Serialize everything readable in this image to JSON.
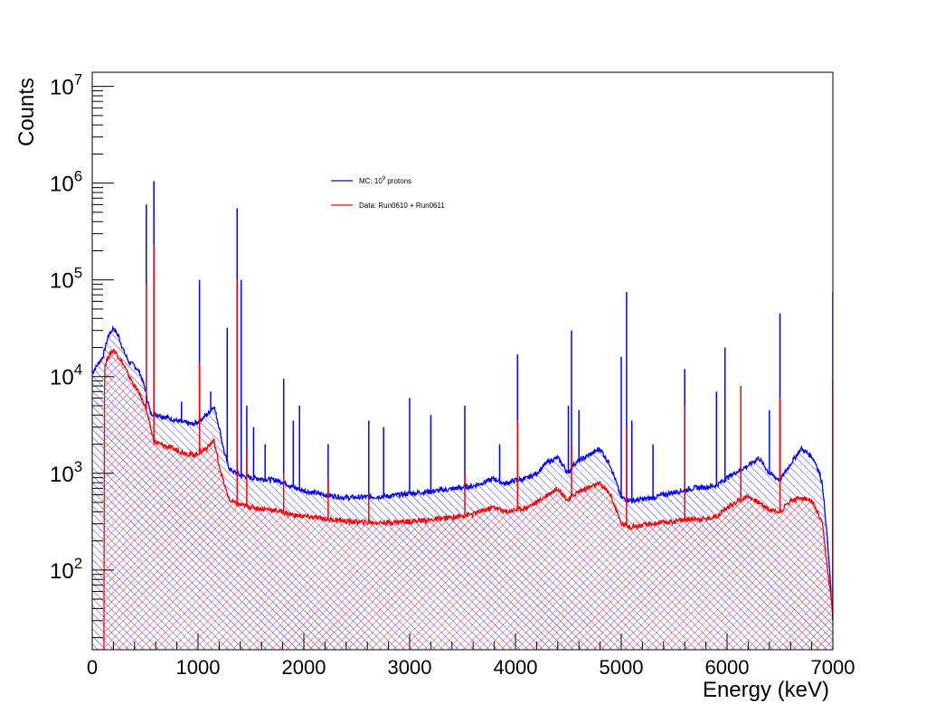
{
  "chart_data": {
    "type": "area",
    "xlabel": "Energy (keV)",
    "ylabel": "Counts",
    "xlim": [
      0,
      7000
    ],
    "ylim": [
      15,
      14000000
    ],
    "yscale": "log",
    "x_ticks": [
      0,
      1000,
      2000,
      3000,
      4000,
      5000,
      6000,
      7000
    ],
    "y_ticks": [
      {
        "value": 100,
        "base": "10",
        "exp": "2"
      },
      {
        "value": 1000,
        "base": "10",
        "exp": "3"
      },
      {
        "value": 10000,
        "base": "10",
        "exp": "4"
      },
      {
        "value": 100000,
        "base": "10",
        "exp": "5"
      },
      {
        "value": 1000000,
        "base": "10",
        "exp": "6"
      },
      {
        "value": 10000000,
        "base": "10",
        "exp": "7"
      }
    ],
    "legend_position": "top-center",
    "series": [
      {
        "name": "MC: 10^9 protons",
        "legend_main": "MC: 10",
        "legend_sup": "9",
        "legend_rest": " protons",
        "color": "#0000ff",
        "fill": "hatched",
        "continuum": [
          [
            0,
            11000
          ],
          [
            100,
            16000
          ],
          [
            150,
            26000
          ],
          [
            200,
            32000
          ],
          [
            250,
            26000
          ],
          [
            300,
            18000
          ],
          [
            350,
            14000
          ],
          [
            400,
            13000
          ],
          [
            450,
            11000
          ],
          [
            500,
            7500
          ],
          [
            550,
            4200
          ],
          [
            600,
            4100
          ],
          [
            700,
            3800
          ],
          [
            800,
            3500
          ],
          [
            900,
            3300
          ],
          [
            950,
            3200
          ],
          [
            1000,
            3400
          ],
          [
            1100,
            4200
          ],
          [
            1150,
            5000
          ],
          [
            1200,
            3000
          ],
          [
            1250,
            1600
          ],
          [
            1300,
            1100
          ],
          [
            1400,
            950
          ],
          [
            1500,
            900
          ],
          [
            1600,
            880
          ],
          [
            1700,
            860
          ],
          [
            1800,
            820
          ],
          [
            1900,
            720
          ],
          [
            2000,
            660
          ],
          [
            2200,
            600
          ],
          [
            2400,
            560
          ],
          [
            2600,
            570
          ],
          [
            2800,
            580
          ],
          [
            3000,
            620
          ],
          [
            3200,
            650
          ],
          [
            3400,
            690
          ],
          [
            3600,
            740
          ],
          [
            3800,
            880
          ],
          [
            3900,
            780
          ],
          [
            4000,
            850
          ],
          [
            4100,
            880
          ],
          [
            4200,
            1000
          ],
          [
            4300,
            1300
          ],
          [
            4400,
            1450
          ],
          [
            4500,
            1000
          ],
          [
            4550,
            1250
          ],
          [
            4600,
            1350
          ],
          [
            4700,
            1550
          ],
          [
            4800,
            1800
          ],
          [
            4900,
            1200
          ],
          [
            5000,
            560
          ],
          [
            5100,
            520
          ],
          [
            5200,
            540
          ],
          [
            5300,
            560
          ],
          [
            5400,
            600
          ],
          [
            5500,
            640
          ],
          [
            5600,
            670
          ],
          [
            5700,
            710
          ],
          [
            5800,
            720
          ],
          [
            5900,
            750
          ],
          [
            6000,
            900
          ],
          [
            6100,
            1050
          ],
          [
            6200,
            1200
          ],
          [
            6300,
            1450
          ],
          [
            6400,
            1000
          ],
          [
            6500,
            850
          ],
          [
            6600,
            1250
          ],
          [
            6700,
            1800
          ],
          [
            6800,
            1500
          ],
          [
            6850,
            1200
          ],
          [
            6900,
            800
          ],
          [
            6950,
            200
          ],
          [
            7000,
            30
          ]
        ],
        "peaks": [
          [
            511,
            600000
          ],
          [
            583,
            1050000
          ],
          [
            844,
            5500
          ],
          [
            1014,
            100000
          ],
          [
            1120,
            7000
          ],
          [
            1276,
            32000
          ],
          [
            1369,
            550000
          ],
          [
            1408,
            100000
          ],
          [
            1461,
            5000
          ],
          [
            1525,
            3000
          ],
          [
            1634,
            2000
          ],
          [
            1809,
            9500
          ],
          [
            1900,
            3500
          ],
          [
            1959,
            5000
          ],
          [
            2230,
            2000
          ],
          [
            2614,
            3500
          ],
          [
            2754,
            3000
          ],
          [
            3000,
            6000
          ],
          [
            3200,
            4000
          ],
          [
            3521,
            5000
          ],
          [
            3850,
            2000
          ],
          [
            4020,
            17000
          ],
          [
            4500,
            5000
          ],
          [
            4530,
            30000
          ],
          [
            4600,
            4500
          ],
          [
            5000,
            16000
          ],
          [
            5050,
            75000
          ],
          [
            5100,
            3500
          ],
          [
            5300,
            2000
          ],
          [
            5600,
            12000
          ],
          [
            5900,
            7000
          ],
          [
            5980,
            20000
          ],
          [
            6400,
            4500
          ],
          [
            6500,
            45000
          ],
          [
            7000,
            75000
          ]
        ]
      },
      {
        "name": "Data: Run0610 + Run0611",
        "legend_main": "Data: Run0610 + Run0611",
        "legend_sup": "",
        "legend_rest": "",
        "color": "#ff0000",
        "fill": "hatched",
        "continuum": [
          [
            0,
            0
          ],
          [
            110,
            0
          ],
          [
            120,
            13000
          ],
          [
            150,
            16000
          ],
          [
            200,
            19000
          ],
          [
            250,
            16000
          ],
          [
            300,
            13000
          ],
          [
            350,
            10000
          ],
          [
            400,
            8000
          ],
          [
            450,
            6500
          ],
          [
            500,
            5000
          ],
          [
            550,
            3000
          ],
          [
            580,
            2200
          ],
          [
            600,
            2100
          ],
          [
            700,
            1900
          ],
          [
            800,
            1750
          ],
          [
            900,
            1600
          ],
          [
            950,
            1550
          ],
          [
            1000,
            1600
          ],
          [
            1100,
            1900
          ],
          [
            1150,
            2200
          ],
          [
            1200,
            1200
          ],
          [
            1250,
            750
          ],
          [
            1300,
            520
          ],
          [
            1400,
            470
          ],
          [
            1500,
            450
          ],
          [
            1600,
            430
          ],
          [
            1700,
            420
          ],
          [
            1800,
            400
          ],
          [
            1900,
            370
          ],
          [
            2000,
            360
          ],
          [
            2200,
            340
          ],
          [
            2400,
            320
          ],
          [
            2600,
            310
          ],
          [
            2800,
            310
          ],
          [
            3000,
            320
          ],
          [
            3200,
            330
          ],
          [
            3400,
            350
          ],
          [
            3600,
            380
          ],
          [
            3800,
            450
          ],
          [
            3900,
            400
          ],
          [
            4000,
            420
          ],
          [
            4100,
            440
          ],
          [
            4200,
            500
          ],
          [
            4300,
            600
          ],
          [
            4400,
            700
          ],
          [
            4500,
            520
          ],
          [
            4550,
            600
          ],
          [
            4600,
            650
          ],
          [
            4700,
            720
          ],
          [
            4800,
            780
          ],
          [
            4900,
            600
          ],
          [
            5000,
            300
          ],
          [
            5100,
            280
          ],
          [
            5200,
            290
          ],
          [
            5300,
            300
          ],
          [
            5400,
            310
          ],
          [
            5500,
            320
          ],
          [
            5600,
            330
          ],
          [
            5700,
            340
          ],
          [
            5800,
            340
          ],
          [
            5900,
            360
          ],
          [
            6000,
            440
          ],
          [
            6100,
            520
          ],
          [
            6200,
            580
          ],
          [
            6300,
            500
          ],
          [
            6400,
            420
          ],
          [
            6500,
            400
          ],
          [
            6600,
            520
          ],
          [
            6700,
            560
          ],
          [
            6800,
            520
          ],
          [
            6850,
            400
          ],
          [
            6900,
            300
          ],
          [
            6950,
            100
          ],
          [
            7000,
            35
          ]
        ],
        "peaks": [
          [
            511,
            90000
          ],
          [
            583,
            230000
          ],
          [
            1014,
            14000
          ],
          [
            1369,
            100000
          ],
          [
            1461,
            1800
          ],
          [
            1809,
            1000
          ],
          [
            2230,
            900
          ],
          [
            2614,
            600
          ],
          [
            3521,
            1000
          ],
          [
            4020,
            3500
          ],
          [
            4530,
            2000
          ],
          [
            5050,
            3000
          ],
          [
            5600,
            5000
          ],
          [
            6130,
            8000
          ],
          [
            6500,
            6000
          ],
          [
            7000,
            9000
          ]
        ]
      }
    ]
  }
}
